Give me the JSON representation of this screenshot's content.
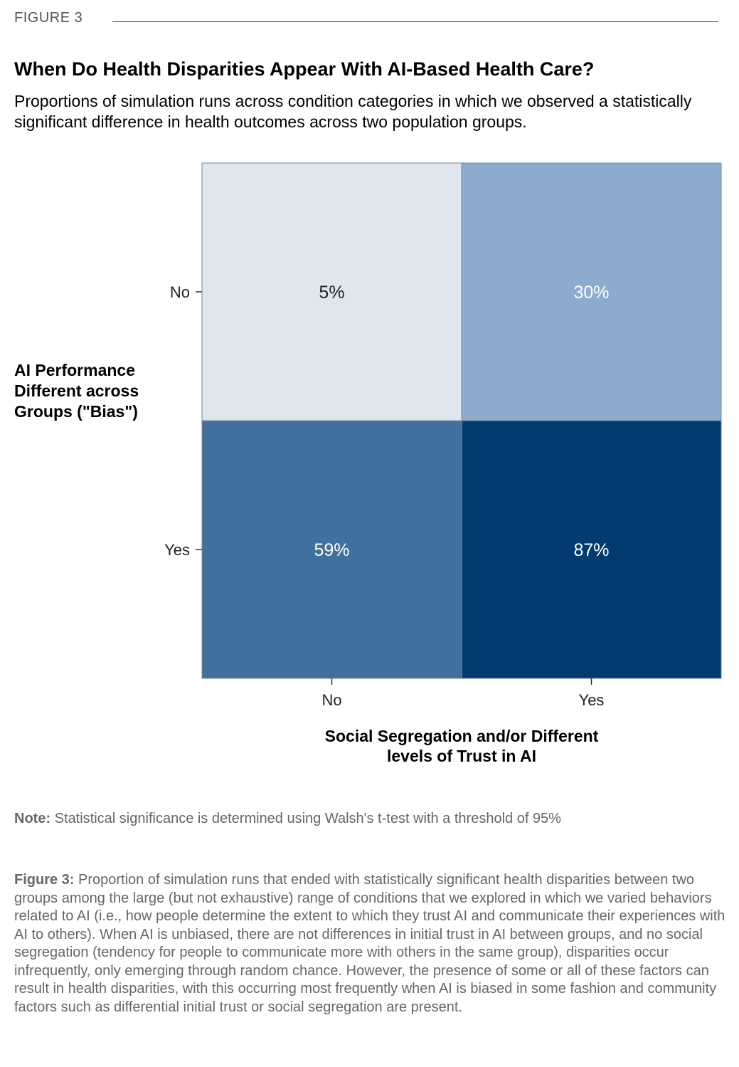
{
  "figure_label": "FIGURE 3",
  "title": "When Do Health Disparities Appear With AI-Based Health Care?",
  "subtitle": "Proportions of simulation runs across condition categories in which we observed a statistically significant difference in health outcomes across two population groups.",
  "note": {
    "label": "Note:",
    "text": " Statistical significance is determined using Walsh's t-test with a threshold of 95%"
  },
  "caption": {
    "label": "Figure 3:",
    "text": " Proportion of simulation runs that ended with statistically significant health disparities between two groups among the large (but not exhaustive) range of conditions that we explored in which we varied behaviors related to AI (i.e., how people determine the extent to which they trust AI and communicate their experiences with AI to others). When AI is unbiased, there are not differences in initial trust in AI between groups, and no social segregation (tendency for people to communicate more with others in the same group), disparities occur infrequently, only emerging through random chance. However, the presence of some or all of these factors can result in health disparities, with this occurring most frequently when AI is biased in some fashion and community factors such as differential initial trust or social segregation are present."
  },
  "chart_data": {
    "type": "heatmap",
    "x_categories": [
      "No",
      "Yes"
    ],
    "y_categories": [
      "No",
      "Yes"
    ],
    "xlabel_lines": [
      "Social Segregation and/or Different",
      "levels of Trust in AI"
    ],
    "ylabel_lines": [
      "AI Performance",
      "Different across",
      "Groups (\"Bias\")"
    ],
    "cells": [
      {
        "x": "No",
        "y": "No",
        "value": 5,
        "label": "5%",
        "color": "#dfe6ee",
        "text_color": "#222222"
      },
      {
        "x": "Yes",
        "y": "No",
        "value": 30,
        "label": "30%",
        "color": "#8cabce",
        "text_color": "#ffffff"
      },
      {
        "x": "No",
        "y": "Yes",
        "value": 59,
        "label": "59%",
        "color": "#41709f",
        "text_color": "#ffffff"
      },
      {
        "x": "Yes",
        "y": "Yes",
        "value": 87,
        "label": "87%",
        "color": "#013b70",
        "text_color": "#ffffff"
      }
    ]
  }
}
